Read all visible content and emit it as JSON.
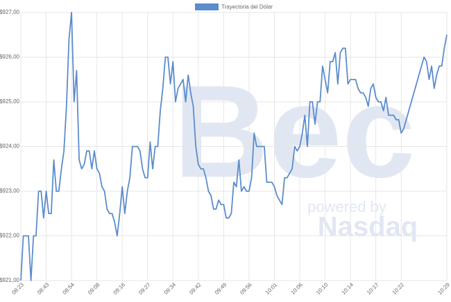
{
  "chart_data": {
    "type": "line",
    "watermark": {
      "logo": "Bec",
      "tagline": "powered by",
      "brand": "Nasdaq"
    },
    "categories": [
      "08:23",
      null,
      null,
      null,
      null,
      null,
      null,
      null,
      null,
      null,
      "08:43",
      null,
      null,
      null,
      null,
      null,
      null,
      null,
      null,
      null,
      "08:54",
      null,
      null,
      null,
      null,
      null,
      null,
      null,
      null,
      null,
      "09:08",
      null,
      null,
      null,
      null,
      null,
      null,
      null,
      null,
      null,
      "09:16",
      null,
      null,
      null,
      null,
      null,
      null,
      null,
      null,
      null,
      "09:27",
      null,
      null,
      null,
      null,
      null,
      null,
      null,
      null,
      null,
      "09:34",
      null,
      null,
      null,
      null,
      null,
      null,
      null,
      null,
      null,
      "09:42",
      null,
      null,
      null,
      null,
      null,
      null,
      null,
      null,
      null,
      "09:49",
      null,
      null,
      null,
      null,
      null,
      null,
      null,
      null,
      null,
      "09:56",
      null,
      null,
      null,
      null,
      null,
      null,
      null,
      null,
      null,
      "10:01",
      null,
      null,
      null,
      null,
      null,
      null,
      null,
      null,
      null,
      "10:06",
      null,
      null,
      null,
      null,
      null,
      null,
      null,
      null,
      null,
      "10:10",
      null,
      null,
      null,
      null,
      null,
      null,
      null,
      null,
      null,
      "10:14",
      null,
      null,
      null,
      null,
      null,
      null,
      null,
      null,
      null,
      "10:17",
      null,
      null,
      null,
      null,
      null,
      null,
      null,
      null,
      null,
      "10:22",
      null,
      null,
      null,
      null,
      null,
      null,
      null,
      null,
      null,
      null,
      null,
      null,
      null,
      null,
      null,
      null,
      null,
      "10:29"
    ],
    "series": [
      {
        "name": "Trayectoria del Dólar",
        "color": "#5b8ccc",
        "values": [
          921.0,
          922.0,
          922.0,
          922.0,
          921.0,
          922.0,
          922.0,
          923.0,
          923.0,
          922.4,
          923.0,
          922.5,
          922.5,
          923.7,
          923.0,
          923.0,
          923.5,
          923.9,
          924.9,
          926.4,
          927.0,
          925.0,
          925.7,
          923.7,
          923.5,
          923.6,
          923.9,
          923.9,
          923.5,
          923.9,
          923.5,
          923.4,
          923.1,
          923.0,
          922.6,
          922.5,
          922.5,
          922.3,
          922.0,
          922.5,
          923.1,
          922.5,
          923.0,
          923.3,
          924.0,
          924.0,
          924.0,
          923.9,
          923.5,
          923.3,
          923.3,
          924.1,
          923.5,
          924.0,
          924.0,
          924.8,
          925.3,
          926.0,
          926.0,
          925.4,
          925.9,
          925.0,
          925.3,
          925.4,
          925.5,
          925.0,
          925.6,
          925.2,
          924.9,
          924.0,
          923.6,
          923.5,
          923.5,
          923.3,
          923.0,
          922.9,
          922.6,
          922.6,
          922.8,
          922.7,
          922.7,
          922.4,
          922.4,
          922.5,
          923.2,
          923.1,
          923.7,
          923.0,
          923.1,
          923.0,
          923.0,
          923.3,
          924.3,
          924.0,
          924.0,
          924.0,
          924.0,
          923.2,
          923.2,
          923.2,
          923.1,
          922.9,
          922.8,
          922.7,
          923.3,
          923.3,
          923.4,
          923.5,
          924.0,
          923.9,
          924.0,
          924.3,
          924.7,
          924.0,
          925.0,
          925.0,
          924.5,
          925.0,
          925.0,
          925.8,
          925.5,
          925.2,
          925.9,
          925.9,
          926.1,
          925.4,
          926.1,
          926.2,
          926.2,
          925.4,
          925.5,
          925.5,
          925.5,
          925.3,
          925.2,
          925.2,
          925.1,
          924.9,
          925.3,
          925.4,
          925.1,
          925.0,
          925.0,
          924.8,
          925.1,
          924.7,
          924.7,
          924.7,
          924.6,
          924.6,
          924.3,
          924.4,
          924.6,
          924.8,
          925.0,
          925.2,
          925.4,
          925.6,
          925.8,
          926.0,
          925.9,
          925.5,
          925.8,
          925.3,
          925.6,
          925.8,
          925.8,
          926.2,
          926.5
        ]
      }
    ],
    "ylim": [
      921,
      927
    ],
    "yticks": [
      {
        "value": 921,
        "label": "$921,00"
      },
      {
        "value": 922,
        "label": "$922,00"
      },
      {
        "value": 923,
        "label": "$923,00"
      },
      {
        "value": 924,
        "label": "$924,00"
      },
      {
        "value": 925,
        "label": "$925,00"
      },
      {
        "value": 926,
        "label": "$926,00"
      },
      {
        "value": 927,
        "label": "$927,00"
      }
    ],
    "grid": true,
    "legend": "top"
  }
}
